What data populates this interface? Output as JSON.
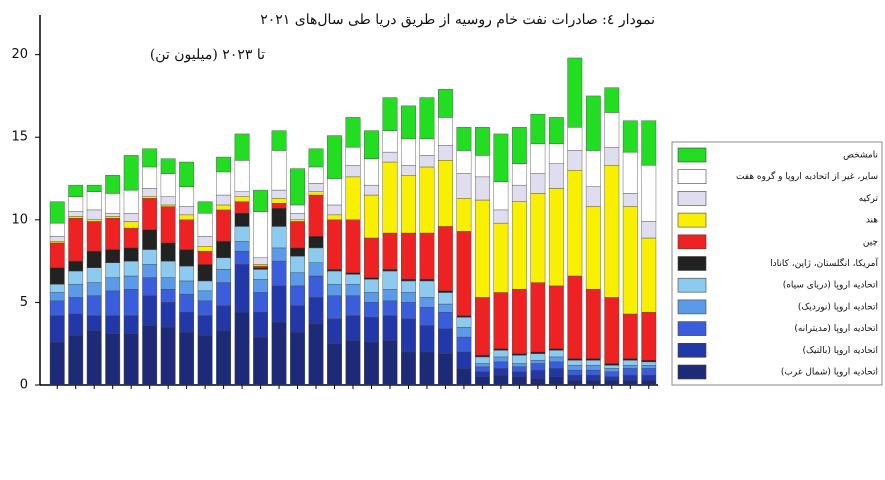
{
  "chart_data": {
    "type": "stacked_bar",
    "title": "نمودار ٤: صادرات نفت خام روسیه از طریق دریا طی سال‌های ۲۰۲۱",
    "subtitle": "تا ۲۰۲۳ (میلیون تن)",
    "categories": [
      null,
      null,
      null,
      null,
      null,
      null,
      null,
      null,
      null,
      null,
      null,
      null,
      null,
      null,
      null,
      null,
      null,
      null,
      null,
      null,
      null,
      null,
      null,
      null,
      null,
      null,
      null,
      null,
      null,
      null,
      null,
      null,
      null
    ],
    "ylim": [
      0,
      22.4
    ],
    "yticks": [
      0,
      5,
      10,
      15,
      20
    ],
    "series": [
      {
        "name": "اتحادیه اروپا (شمال غرب)",
        "color": "#1c2a78",
        "values": [
          2.6,
          3.0,
          3.3,
          3.1,
          3.1,
          3.6,
          3.5,
          3.2,
          3.0,
          3.3,
          4.4,
          2.9,
          3.8,
          3.2,
          3.7,
          2.5,
          2.7,
          2.6,
          2.7,
          2.0,
          2.0,
          1.9,
          1.0,
          0.5,
          0.6,
          0.5,
          0.4,
          0.5,
          0.3,
          0.3,
          0.3,
          0.3,
          0.3
        ]
      },
      {
        "name": "اتحادیه اروپا (بالتیک)",
        "color": "#2338a8",
        "values": [
          1.6,
          1.3,
          0.9,
          1.1,
          1.1,
          1.8,
          1.5,
          1.2,
          1.2,
          1.5,
          2.9,
          1.5,
          2.2,
          1.6,
          1.6,
          1.5,
          1.5,
          1.5,
          1.5,
          2.0,
          1.6,
          1.5,
          1.0,
          0.3,
          0.4,
          0.3,
          0.5,
          0.5,
          0.3,
          0.3,
          0.2,
          0.3,
          0.3
        ]
      },
      {
        "name": "اتحادیه اروپا (مدیترانه)",
        "color": "#3a5ddc",
        "values": [
          0.9,
          1.0,
          1.2,
          1.5,
          1.6,
          1.1,
          0.8,
          1.1,
          0.9,
          1.4,
          0.8,
          1.2,
          1.5,
          1.2,
          1.3,
          1.4,
          1.2,
          0.9,
          0.9,
          1.0,
          1.1,
          1.0,
          0.9,
          0.3,
          0.4,
          0.3,
          0.4,
          0.4,
          0.3,
          0.3,
          0.3,
          0.4,
          0.4
        ]
      },
      {
        "name": "اتحادیه اروپا (نوردیک)",
        "color": "#5b9ae8",
        "values": [
          0.5,
          0.8,
          0.8,
          0.8,
          0.8,
          0.8,
          0.7,
          0.8,
          0.6,
          0.8,
          0.6,
          0.8,
          0.8,
          0.8,
          0.8,
          0.7,
          0.7,
          0.6,
          0.7,
          0.6,
          0.6,
          0.5,
          0.6,
          0.2,
          0.3,
          0.2,
          0.2,
          0.3,
          0.3,
          0.3,
          0.2,
          0.2,
          0.2
        ]
      },
      {
        "name": "اتحادیه اروپا (دریای سیاه)",
        "color": "#8ccaf0",
        "values": [
          0.5,
          0.8,
          0.9,
          0.9,
          0.9,
          0.9,
          1.0,
          0.9,
          0.6,
          0.7,
          0.9,
          0.6,
          1.3,
          1.0,
          0.9,
          0.8,
          0.6,
          0.8,
          1.1,
          0.7,
          1.0,
          0.7,
          0.6,
          0.4,
          0.4,
          0.5,
          0.4,
          0.4,
          0.3,
          0.3,
          0.2,
          0.3,
          0.2
        ]
      },
      {
        "name": "آمریکا، انگلستان، ژاپن، کانادا",
        "color": "#222222",
        "values": [
          1.0,
          0.6,
          1.0,
          0.8,
          0.8,
          1.2,
          1.1,
          1.0,
          1.0,
          1.0,
          0.8,
          0.1,
          1.1,
          0.5,
          0.7,
          0.1,
          0.1,
          0.1,
          0.1,
          0.1,
          0.1,
          0.1,
          0.1,
          0.1,
          0.1,
          0.1,
          0.1,
          0.1,
          0.1,
          0.1,
          0.1,
          0.1,
          0.1
        ]
      },
      {
        "name": "چین",
        "color": "#ee2222",
        "values": [
          1.5,
          2.6,
          1.8,
          1.9,
          1.2,
          1.9,
          2.2,
          1.8,
          0.8,
          1.9,
          0.7,
          0.1,
          0.3,
          1.6,
          2.5,
          3.0,
          3.2,
          2.4,
          2.2,
          2.8,
          2.8,
          3.9,
          5.1,
          3.5,
          3.4,
          3.9,
          4.2,
          3.8,
          5.0,
          4.2,
          4.0,
          2.7,
          2.9
        ]
      },
      {
        "name": "هند",
        "color": "#f8f000",
        "values": [
          0.1,
          0.1,
          0.1,
          0.1,
          0.4,
          0.1,
          0.1,
          0.3,
          0.3,
          0.3,
          0.3,
          0.1,
          0.3,
          0.1,
          0.2,
          0.3,
          2.6,
          2.6,
          4.3,
          3.5,
          4.0,
          4.0,
          2.0,
          5.9,
          4.2,
          5.3,
          5.4,
          5.9,
          6.4,
          5.0,
          8.0,
          6.5,
          4.5
        ]
      },
      {
        "name": "ترکیه",
        "color": "#e0ddee",
        "values": [
          0.3,
          0.3,
          0.6,
          0.2,
          0.5,
          0.5,
          0.5,
          0.5,
          0.6,
          0.6,
          0.3,
          0.4,
          0.5,
          0.4,
          0.5,
          0.6,
          0.7,
          0.6,
          0.6,
          0.6,
          0.7,
          0.9,
          1.5,
          1.4,
          0.8,
          1.0,
          1.2,
          1.5,
          1.2,
          1.2,
          1.1,
          0.8,
          1.0
        ]
      },
      {
        "name": "سایر، غیر از اتحادیه اروپا و گروه هفت",
        "color": "#ffffff",
        "values": [
          0.8,
          0.9,
          1.1,
          1.2,
          1.4,
          1.3,
          1.4,
          1.2,
          1.4,
          1.4,
          1.9,
          2.8,
          2.4,
          0.5,
          1.0,
          1.6,
          1.1,
          1.6,
          1.3,
          1.6,
          1.0,
          1.7,
          1.4,
          1.3,
          1.7,
          1.3,
          1.8,
          1.2,
          1.4,
          2.2,
          2.1,
          2.5,
          3.4
        ]
      },
      {
        "name": "نامشخص",
        "color": "#22dd22",
        "values": [
          1.3,
          0.7,
          0.4,
          1.1,
          2.1,
          1.1,
          0.9,
          1.5,
          0.7,
          0.9,
          1.6,
          1.3,
          1.2,
          2.2,
          1.1,
          2.6,
          1.8,
          1.7,
          2.0,
          2.0,
          2.5,
          1.7,
          1.4,
          1.7,
          2.9,
          2.2,
          1.8,
          1.6,
          4.2,
          3.3,
          1.5,
          1.9,
          2.7
        ]
      }
    ]
  }
}
